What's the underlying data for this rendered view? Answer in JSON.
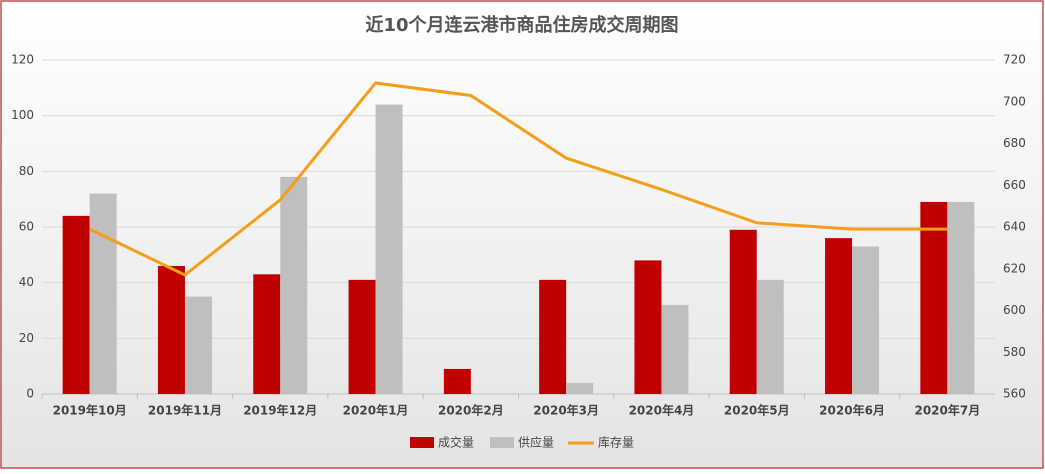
{
  "chart_data": {
    "type": "bar",
    "title": "近10个月连云港市商品住房成交周期图",
    "categories": [
      "2019年10月",
      "2019年11月",
      "2019年12月",
      "2020年1月",
      "2020年2月",
      "2020年3月",
      "2020年4月",
      "2020年5月",
      "2020年6月",
      "2020年7月"
    ],
    "series": [
      {
        "name": "成交量",
        "color": "#c00000",
        "type": "bar",
        "values": [
          64,
          46,
          43,
          41,
          9,
          41,
          48,
          59,
          56,
          69
        ]
      },
      {
        "name": "供应量",
        "color": "#bfbfbf",
        "type": "bar",
        "values": [
          72,
          35,
          78,
          104,
          0,
          4,
          32,
          41,
          53,
          69
        ]
      },
      {
        "name": "库存量",
        "color": "#f59e19",
        "type": "line",
        "axis": "y2",
        "values": [
          639,
          617,
          653,
          709,
          703,
          673,
          658,
          642,
          639,
          639
        ]
      }
    ],
    "ylim": [
      0,
      120
    ],
    "yticks": [
      0,
      20,
      40,
      60,
      80,
      100,
      120
    ],
    "y2lim": [
      560,
      720
    ],
    "y2ticks": [
      560,
      580,
      600,
      620,
      640,
      660,
      680,
      700,
      720
    ],
    "grid": true,
    "legend": "bottom"
  }
}
